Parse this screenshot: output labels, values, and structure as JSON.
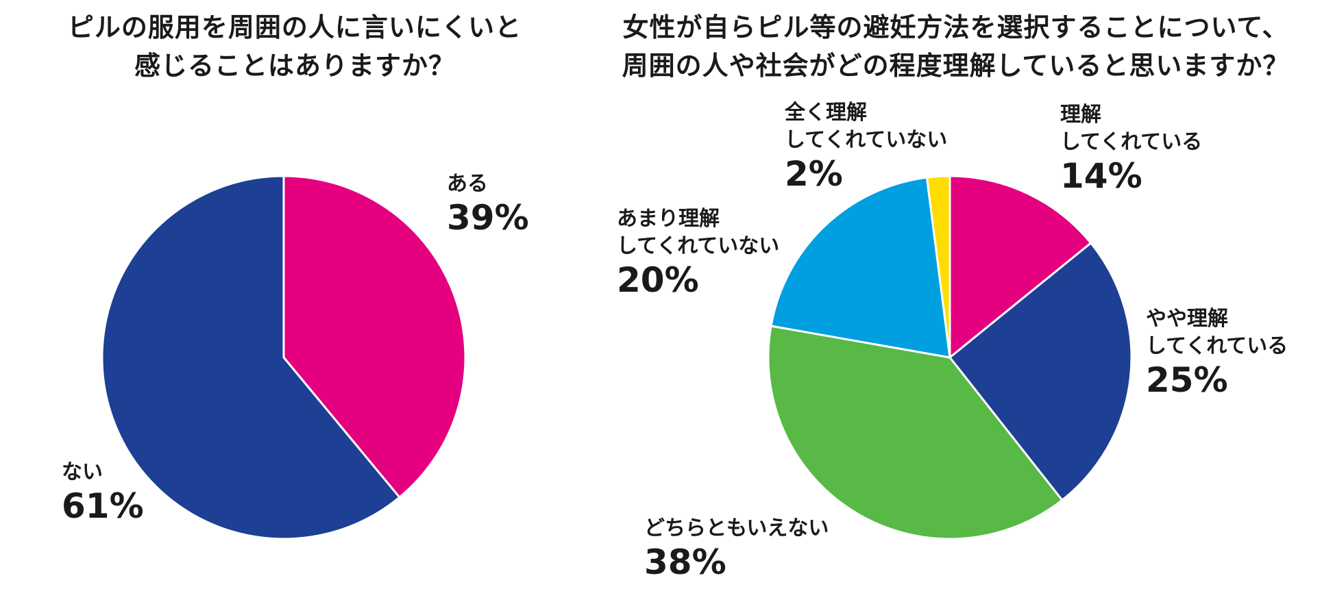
{
  "chart_data": [
    {
      "type": "pie",
      "title": [
        "ピルの服用を周囲の人に言いにくいと",
        "感じることはありますか？"
      ],
      "categories": [
        "ある",
        "ない"
      ],
      "values": [
        39,
        61
      ],
      "labels_pct": [
        "39%",
        "61%"
      ],
      "colors": [
        "#e4007f",
        "#1d3f94"
      ]
    },
    {
      "type": "pie",
      "title": [
        "女性が自らピル等の避妊方法を選択することについて、",
        "周囲の人や社会がどの程度理解していると思いますか？"
      ],
      "categories": [
        [
          "理解",
          "してくれている"
        ],
        [
          "やや理解",
          "してくれている"
        ],
        [
          "どちらともいえない"
        ],
        [
          "あまり理解",
          "してくれていない"
        ],
        [
          "全く理解",
          "してくれていない"
        ]
      ],
      "values": [
        14,
        25,
        38,
        20,
        2
      ],
      "labels_pct": [
        "14%",
        "25%",
        "38%",
        "20%",
        "2%"
      ],
      "colors": [
        "#e4007f",
        "#1d3f94",
        "#58b947",
        "#009fe0",
        "#ffdd00"
      ]
    }
  ]
}
